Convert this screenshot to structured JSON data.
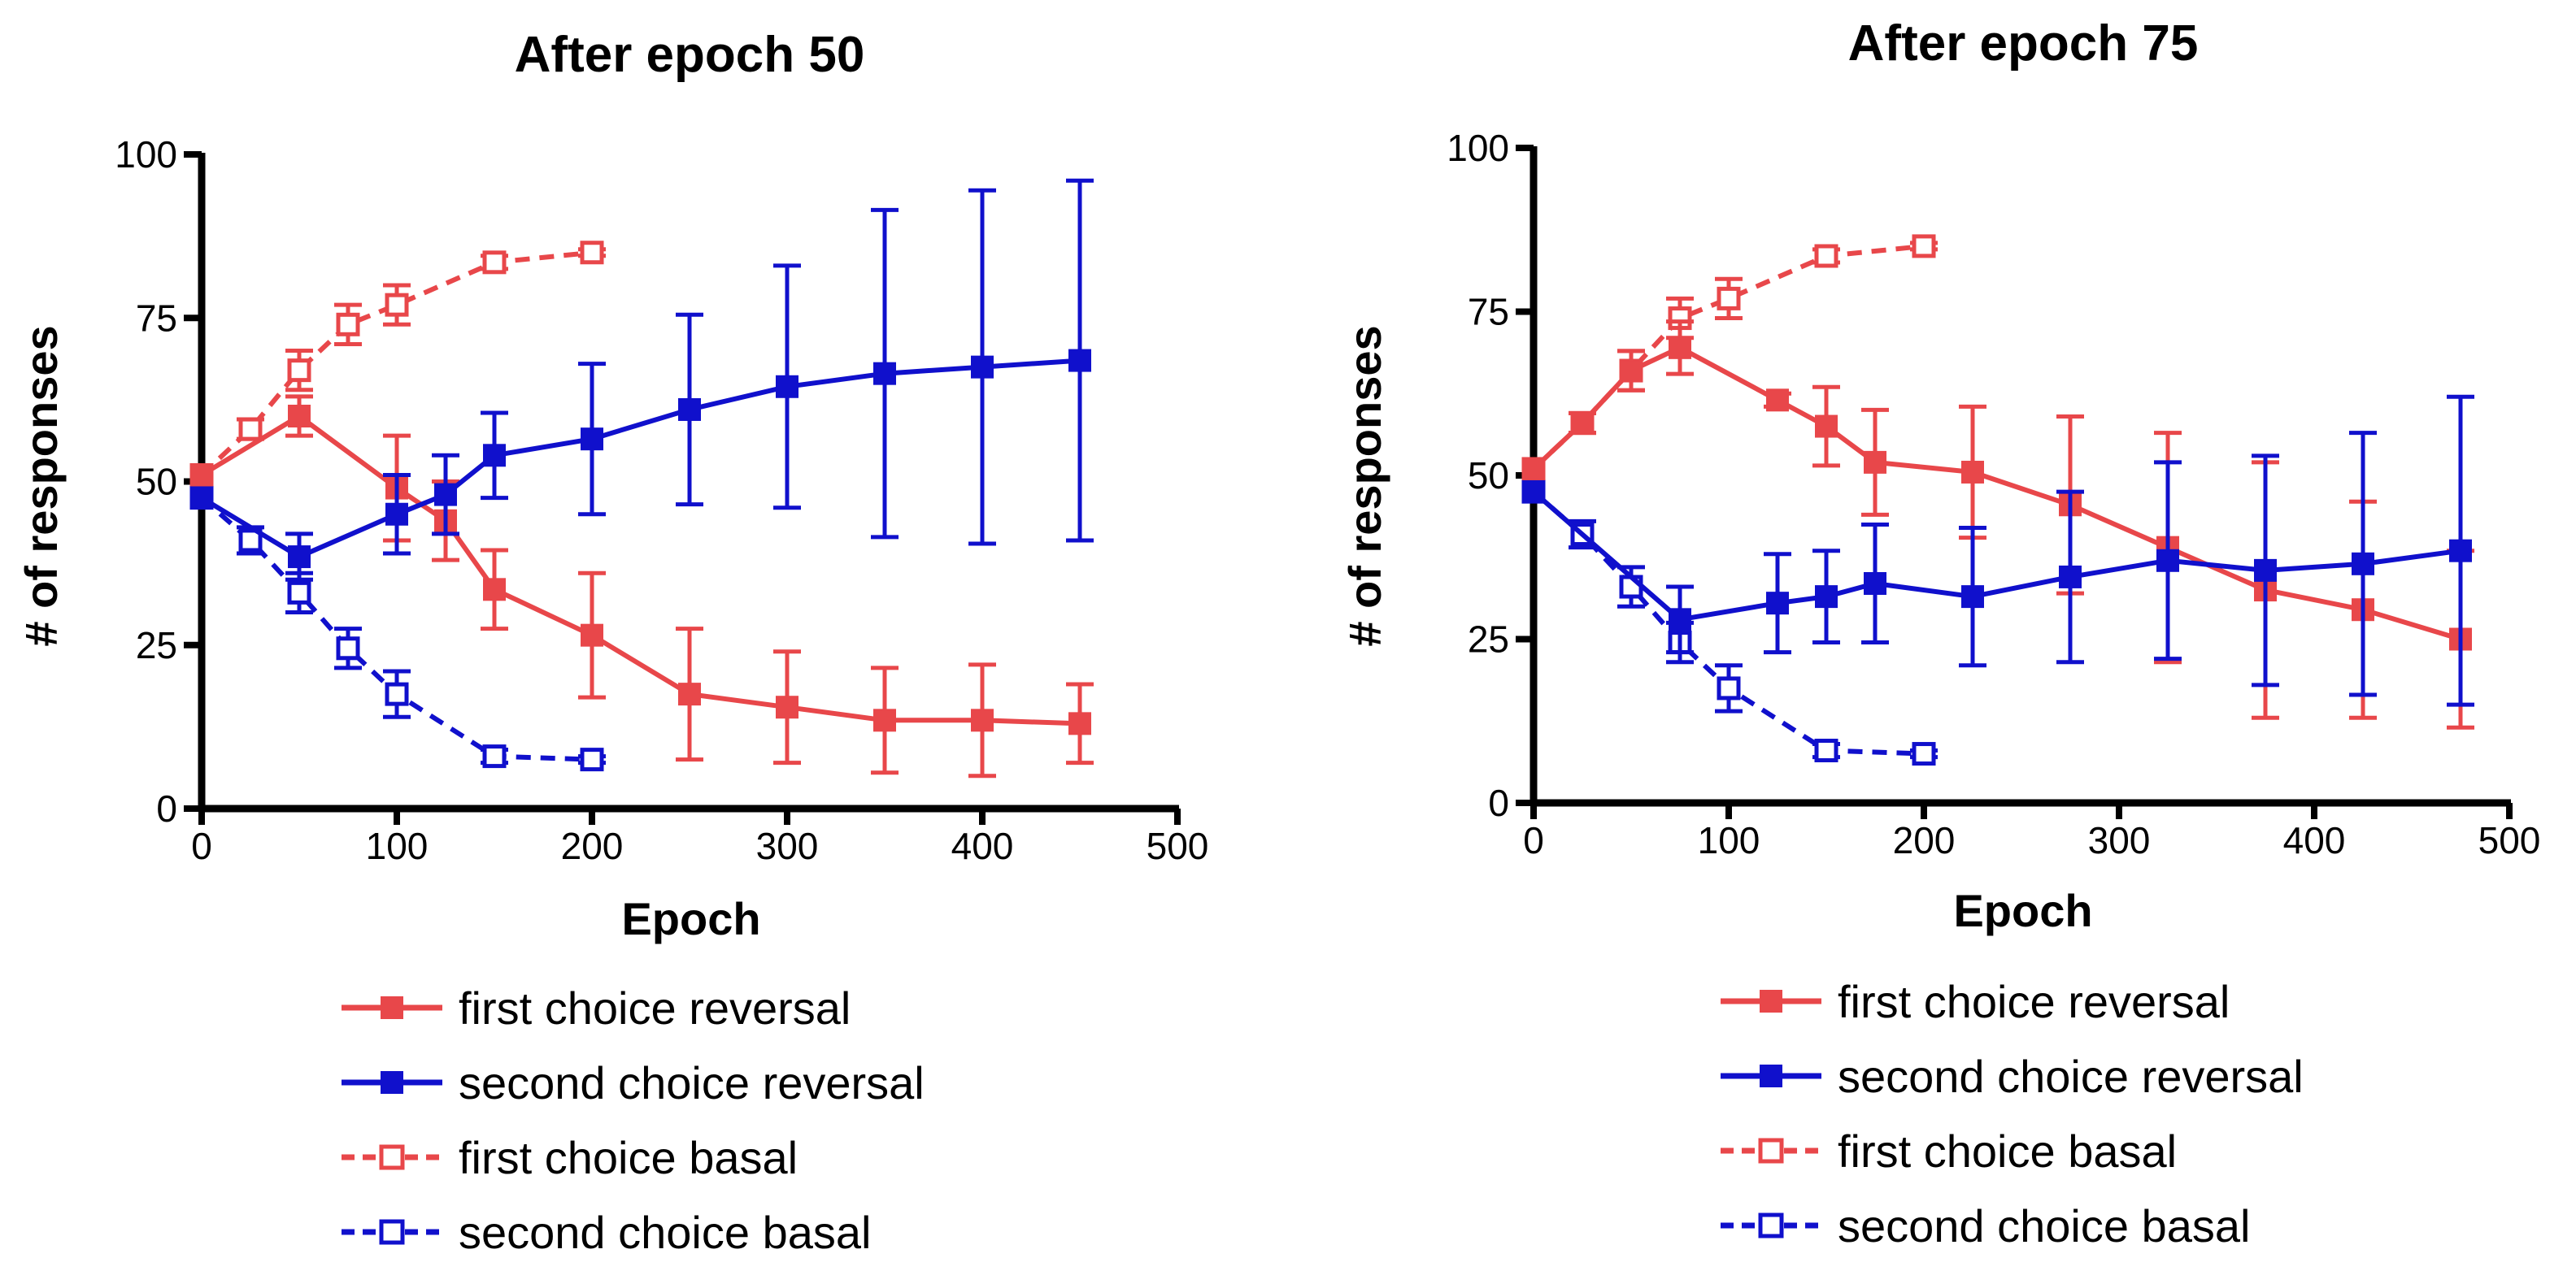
{
  "chart_data": [
    {
      "type": "line",
      "title": "After epoch 50",
      "xlabel": "Epoch",
      "ylabel": "# of responses",
      "xlim": [
        0,
        500
      ],
      "ylim": [
        0,
        100
      ],
      "xticks": [
        "0",
        "100",
        "200",
        "300",
        "400",
        "500"
      ],
      "yticks": [
        "0",
        "25",
        "50",
        "75",
        "100"
      ],
      "series": [
        {
          "name": "first choice reversal",
          "color": "#e8474a",
          "style": "solid",
          "marker": "filled-square",
          "x": [
            0,
            50,
            100,
            125,
            150,
            200,
            250,
            300,
            350,
            400,
            450
          ],
          "y": [
            51,
            60,
            49,
            44,
            33.5,
            26.5,
            17.5,
            15.5,
            13.5,
            13.5,
            13
          ],
          "err": [
            0,
            3,
            8,
            6,
            6,
            9.5,
            10,
            8.5,
            8,
            8.5,
            6
          ]
        },
        {
          "name": "second choice reversal",
          "color": "#1010cc",
          "style": "solid",
          "marker": "filled-square",
          "x": [
            0,
            50,
            100,
            125,
            150,
            200,
            250,
            300,
            350,
            400,
            450
          ],
          "y": [
            47.5,
            38.5,
            45,
            48,
            54,
            56.5,
            61,
            64.5,
            66.5,
            67.5,
            68.5
          ],
          "err": [
            0,
            3.5,
            6,
            6,
            6.5,
            11.5,
            14.5,
            18.5,
            25,
            27,
            27.5
          ]
        },
        {
          "name": "first choice basal",
          "color": "#e8474a",
          "style": "dashed",
          "marker": "open-square",
          "x": [
            0,
            25,
            50,
            75,
            100,
            150,
            200
          ],
          "y": [
            51,
            58,
            67,
            74,
            77,
            83.5,
            85
          ],
          "err": [
            0,
            1.5,
            3,
            3,
            3,
            1,
            0.5
          ]
        },
        {
          "name": "second choice basal",
          "color": "#1010cc",
          "style": "dashed",
          "marker": "open-square",
          "x": [
            0,
            25,
            50,
            75,
            100,
            150,
            200
          ],
          "y": [
            47.5,
            41,
            33,
            24.5,
            17.5,
            8,
            7.5
          ],
          "err": [
            0,
            2,
            3,
            3,
            3.5,
            1,
            0.5
          ]
        }
      ]
    },
    {
      "type": "line",
      "title": "After epoch 75",
      "xlabel": "Epoch",
      "ylabel": "# of responses",
      "xlim": [
        0,
        500
      ],
      "ylim": [
        0,
        100
      ],
      "xticks": [
        "0",
        "100",
        "200",
        "300",
        "400",
        "500"
      ],
      "yticks": [
        "0",
        "25",
        "50",
        "75",
        "100"
      ],
      "series": [
        {
          "name": "first choice reversal",
          "color": "#e8474a",
          "style": "solid",
          "marker": "filled-square",
          "x": [
            0,
            25,
            50,
            75,
            125,
            150,
            175,
            225,
            275,
            325,
            375,
            425,
            475
          ],
          "y": [
            51,
            58,
            66,
            69.5,
            61.5,
            57.5,
            52,
            50.5,
            45.5,
            39,
            32.5,
            29.5,
            25
          ],
          "err": [
            0,
            1.5,
            3,
            4,
            1,
            6,
            8,
            10,
            13.5,
            17.5,
            19.5,
            16.5,
            13.5
          ]
        },
        {
          "name": "second choice reversal",
          "color": "#1010cc",
          "style": "solid",
          "marker": "filled-square",
          "x": [
            0,
            75,
            125,
            150,
            175,
            225,
            275,
            325,
            375,
            425,
            475
          ],
          "y": [
            47.5,
            28,
            30.5,
            31.5,
            33.5,
            31.5,
            34.5,
            37,
            35.5,
            36.5,
            38.5
          ],
          "err": [
            0,
            5,
            7.5,
            7,
            9,
            10.5,
            13,
            15,
            17.5,
            20,
            23.5
          ]
        },
        {
          "name": "first choice basal",
          "color": "#e8474a",
          "style": "dashed",
          "marker": "open-square",
          "x": [
            0,
            25,
            50,
            75,
            100,
            150,
            200
          ],
          "y": [
            51,
            58,
            66,
            74,
            77,
            83.5,
            85
          ],
          "err": [
            0,
            1.5,
            3,
            3,
            3,
            1,
            0.5
          ]
        },
        {
          "name": "second choice basal",
          "color": "#1010cc",
          "style": "dashed",
          "marker": "open-square",
          "x": [
            0,
            25,
            50,
            75,
            100,
            150,
            200
          ],
          "y": [
            47.5,
            41,
            33,
            24.5,
            17.5,
            8,
            7.5
          ],
          "err": [
            0,
            2,
            3,
            3,
            3.5,
            1,
            0.5
          ]
        }
      ]
    }
  ]
}
